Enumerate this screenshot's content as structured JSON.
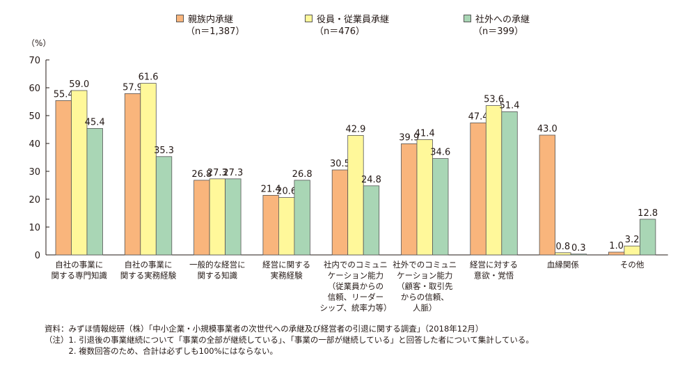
{
  "chart_data": {
    "type": "bar",
    "ylabel": "（%）",
    "ylim": [
      0,
      70
    ],
    "yticks": [
      0,
      10,
      20,
      30,
      40,
      50,
      60,
      70
    ],
    "grid": false,
    "legend_position": "top",
    "categories": [
      [
        "自社の事業に",
        "関する専門知識"
      ],
      [
        "自社の事業に",
        "関する実務経験"
      ],
      [
        "一般的な経営に",
        "関する知識"
      ],
      [
        "経営に関する",
        "実務経験"
      ],
      [
        "社内でのコミュニ",
        "ケーション能力",
        "（従業員からの",
        "信頼、リーダー",
        "シップ、統率力等）"
      ],
      [
        "社外でのコミュニ",
        "ケーション能力",
        "（顧客・取引先",
        "からの信頼、",
        "人脈）"
      ],
      [
        "経営に対する",
        "意欲・覚悟"
      ],
      [
        "血縁関係"
      ],
      [
        "その他"
      ]
    ],
    "series": [
      {
        "name": "親族内承継",
        "n": "（n＝1,387）",
        "color": "#F9B57C",
        "values": [
          55.4,
          57.9,
          26.8,
          21.4,
          30.5,
          39.9,
          47.4,
          43.0,
          1.0
        ]
      },
      {
        "name": "役員・従業員承継",
        "n": "（n＝476）",
        "color": "#FFF89A",
        "values": [
          59.0,
          61.6,
          27.3,
          20.6,
          42.9,
          41.4,
          53.6,
          0.8,
          3.2
        ]
      },
      {
        "name": "社外への承継",
        "n": "（n＝399）",
        "color": "#A9D6B5",
        "values": [
          45.4,
          35.3,
          27.3,
          26.8,
          24.8,
          34.6,
          51.4,
          0.3,
          12.8
        ]
      }
    ]
  },
  "notes": {
    "source": "資料：みずほ情報総研（株）「中小企業・小規模事業者の次世代への承継及び経営者の引退に関する調査」（2018年12月）",
    "note1": "（注）1. 引退後の事業継続について「事業の全部が継続している」、「事業の一部が継続している」と回答した者について集計している。",
    "note2": "　　　2. 複数回答のため、合計は必ずしも100%にはならない。"
  }
}
